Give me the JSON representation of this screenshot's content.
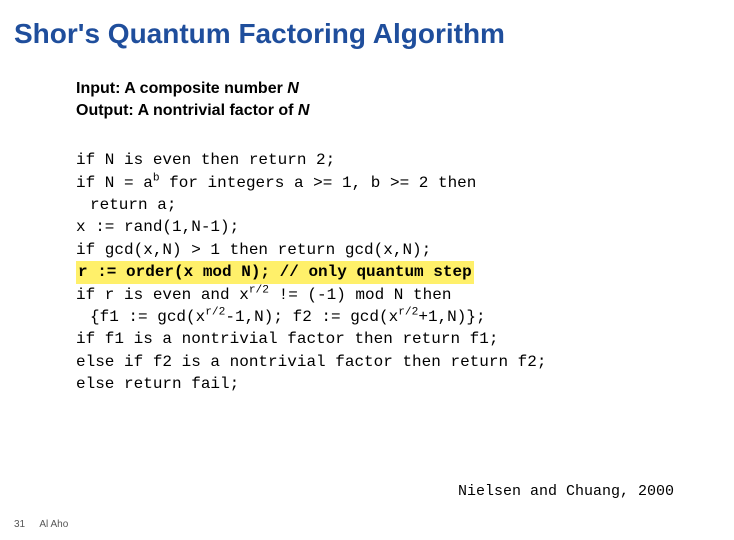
{
  "title": "Shor's Quantum Factoring Algorithm",
  "io": {
    "input_label": "Input:",
    "input_text": " A composite number ",
    "input_var": "N",
    "output_label": "Output:",
    "output_text": " A nontrivial factor of ",
    "output_var": "N"
  },
  "code": {
    "l1": "if N is even then return 2;",
    "l2a": "if N = a",
    "l2sup": "b",
    "l2b": " for integers a >= 1, b >= 2 then",
    "l3": "return a;",
    "l4": "x := rand(1,N-1);",
    "l5": "if gcd(x,N) > 1 then return gcd(x,N);",
    "l6": "r := order(x mod N); // only quantum step",
    "l7a": "if r is even and x",
    "l7sup": "r/2",
    "l7b": " != (-1) mod N then",
    "l8a": "{f1 := gcd(x",
    "l8sup1": "r/2",
    "l8b": "-1,N);  f2 := gcd(x",
    "l8sup2": "r/2",
    "l8c": "+1,N)};",
    "l9": "if f1 is a nontrivial factor then return f1;",
    "l10": "else if f2 is a nontrivial factor then return f2;",
    "l11": "else return fail;"
  },
  "citation": "Nielsen and Chuang, 2000",
  "footer": {
    "page": "31",
    "author": "Al Aho"
  },
  "colors": {
    "title": "#1f4e9c",
    "highlight": "#fff06a",
    "text": "#000000",
    "background": "#ffffff"
  }
}
